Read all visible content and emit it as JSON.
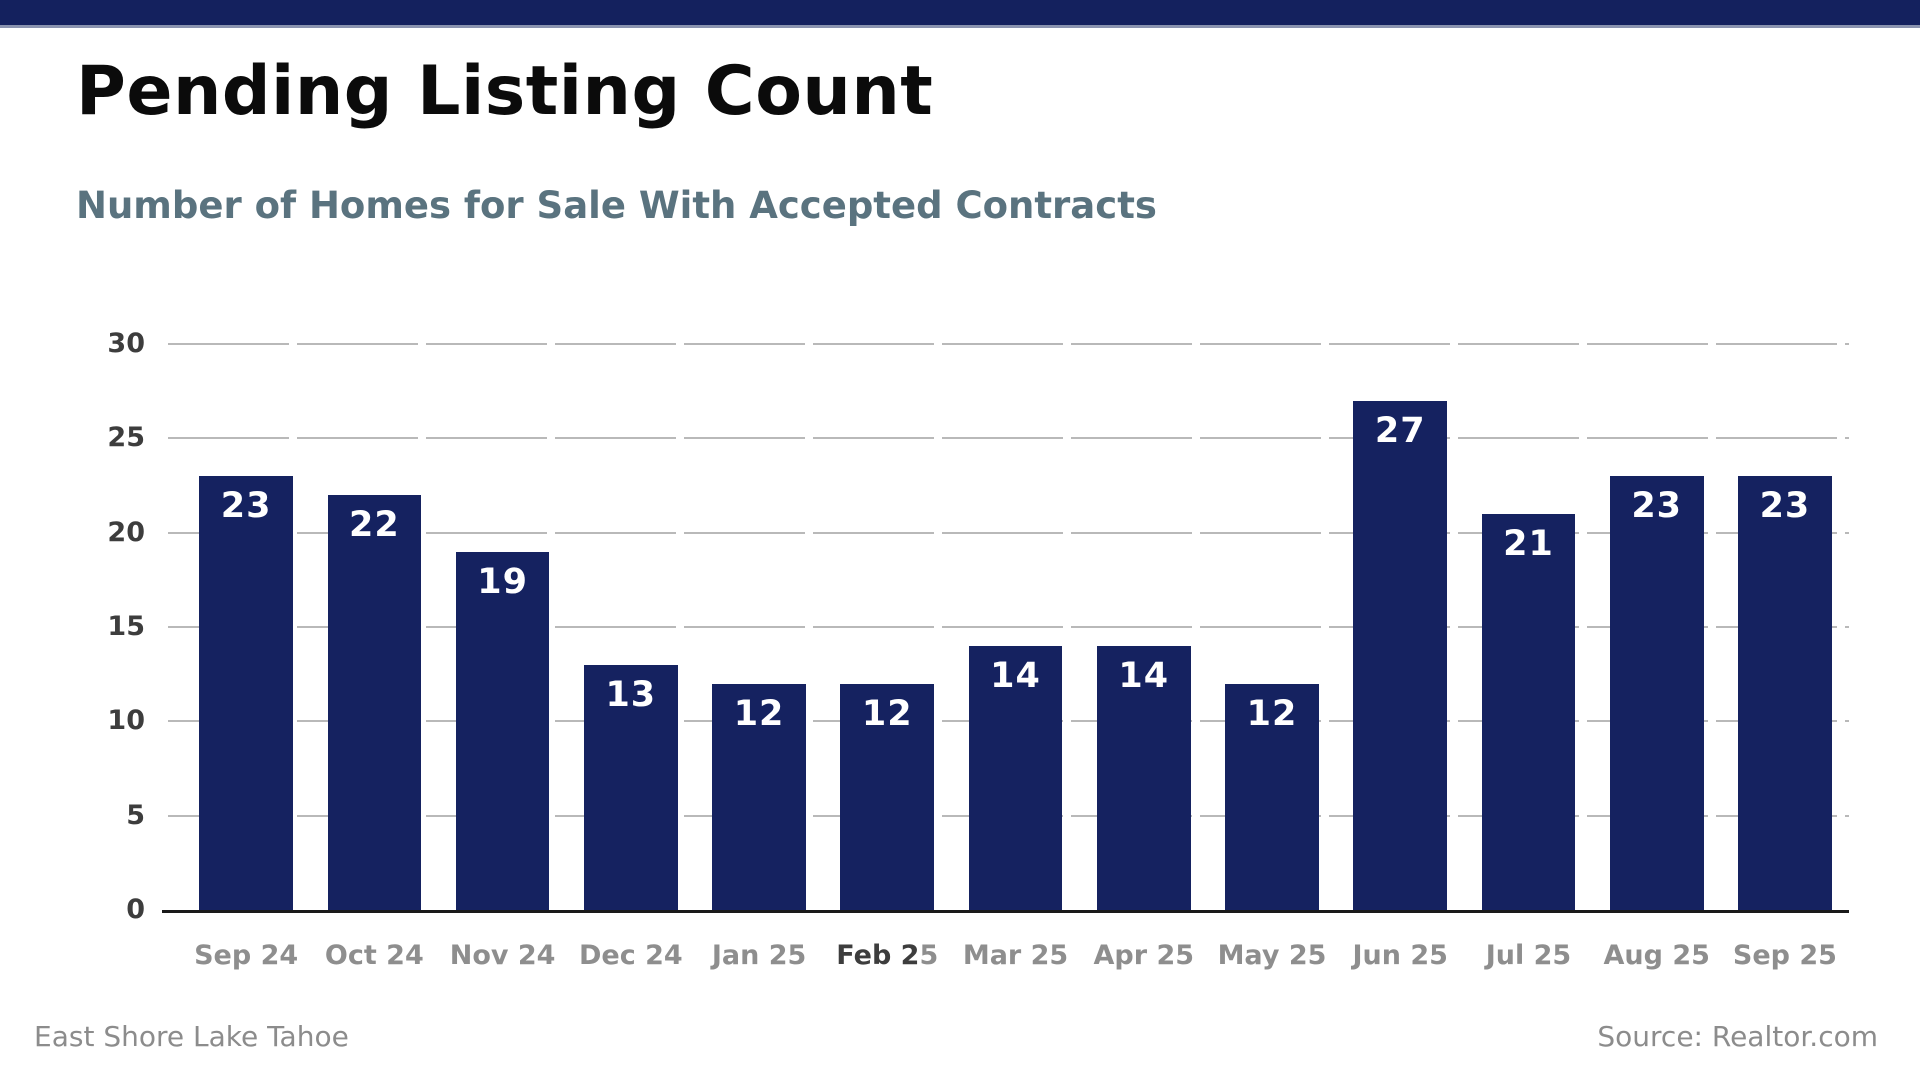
{
  "window": {
    "top_bar_color": "#14215e"
  },
  "header": {
    "title": "Pending Listing Count",
    "subtitle": "Number of Homes for Sale With Accepted Contracts"
  },
  "footer": {
    "left": "East Shore Lake Tahoe",
    "right": "Source: Realtor.com"
  },
  "colors": {
    "top_bar": "#14215e",
    "top_bar_edge": "#8a93af",
    "bar": "#152260",
    "title_text": "#0b0b0b",
    "subtitle_text": "#5a737f",
    "y_tick_text": "#3d3d3d",
    "x_tick_text": "#8e8e8e",
    "x_tick_emphasis_text": "#3d3d3d",
    "gridline": "#b9b9b9",
    "axis_line": "#1a1a1a",
    "value_label_text": "#ffffff",
    "footer_text": "#8c8c8c"
  },
  "chart_data": {
    "type": "bar",
    "title": "Pending Listing Count",
    "subtitle": "Number of Homes for Sale With Accepted Contracts",
    "categories": [
      "Sep 24",
      "Oct 24",
      "Nov 24",
      "Dec 24",
      "Jan 25",
      "Feb 25",
      "Mar 25",
      "Apr 25",
      "May 25",
      "Jun 25",
      "Jul 25",
      "Aug 25",
      "Sep 25"
    ],
    "values": [
      23,
      22,
      19,
      13,
      12,
      12,
      14,
      14,
      12,
      27,
      21,
      23,
      23
    ],
    "ylim": [
      0,
      30
    ],
    "y_ticks": [
      0,
      5,
      10,
      15,
      20,
      25,
      30
    ],
    "xlabel": "",
    "ylabel": "",
    "grid": "horizontal-segmented",
    "legend": "none",
    "bar_value_labels": "inside-top",
    "x_label_emphasis": {
      "category": "Feb 25",
      "dark_part": "Feb 2"
    },
    "annotation": "East Shore Lake Tahoe",
    "source": "Source: Realtor.com"
  }
}
